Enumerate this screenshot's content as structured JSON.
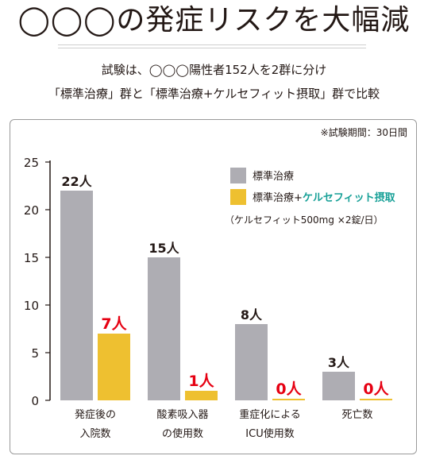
{
  "header": {
    "title": "◯◯◯の発症リスクを大幅減",
    "subtitle_line1": "試験は、◯◯◯陽性者152人を2群に分け",
    "subtitle_line2": "「標準治療」群と「標準治療+ケルセフィット摂取」群で比較"
  },
  "note": "※試験期間：30日間",
  "legend": {
    "gray_label": "標準治療",
    "yellow_label_prefix": "標準治療+",
    "yellow_label_highlight": "ケルセフィット摂取",
    "dose_note": "（ケルセフィット500mg ×2錠/日）"
  },
  "colors": {
    "gray_bar": "#aeadb3",
    "yellow_bar": "#eec030",
    "red_label": "#e60012",
    "teal_highlight": "#17a097",
    "text": "#231815"
  },
  "chart_data": {
    "type": "bar",
    "categories": [
      [
        "発症後の",
        "入院数"
      ],
      [
        "酸素吸入器",
        "の使用数"
      ],
      [
        "重症化による",
        "ICU使用数"
      ],
      [
        "死亡数"
      ]
    ],
    "series": [
      {
        "name": "標準治療",
        "values": [
          22,
          15,
          8,
          3
        ],
        "labels": [
          "22人",
          "15人",
          "8人",
          "3人"
        ]
      },
      {
        "name": "標準治療+ケルセフィット摂取",
        "values": [
          7,
          1,
          0,
          0
        ],
        "labels": [
          "7人",
          "1人",
          "0人",
          "0人"
        ]
      }
    ],
    "ylim": [
      0,
      25
    ],
    "yticks": [
      "0",
      "5",
      "10",
      "15",
      "20",
      "25"
    ],
    "xlabel": "",
    "ylabel": "",
    "grid": false,
    "legend_position": "top-right"
  }
}
